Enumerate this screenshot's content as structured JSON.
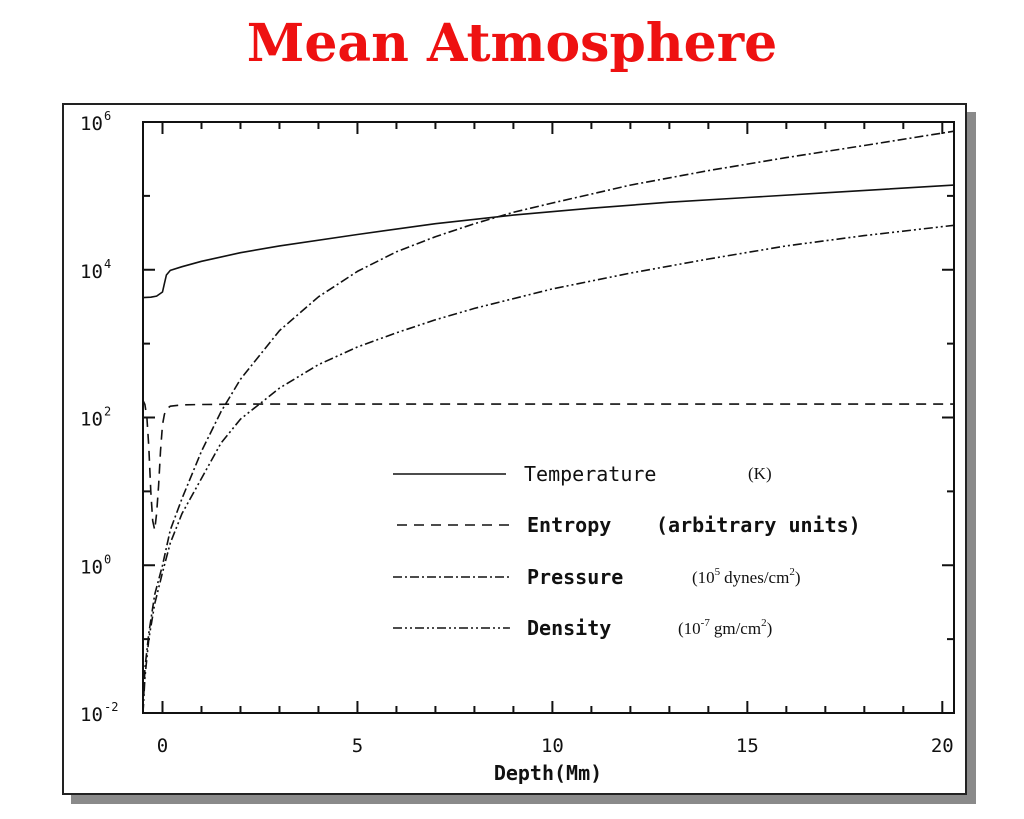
{
  "slide": {
    "title": "Mean Atmosphere"
  },
  "chart_data": {
    "type": "line",
    "title": "",
    "xlabel": "Depth(Mm)",
    "ylabel": "",
    "xlim": [
      -0.5,
      20.3
    ],
    "ylim": [
      0.01,
      1000000
    ],
    "y_scale": "log",
    "grid": false,
    "legend_placement": "lower-right",
    "x_ticks": [
      "0",
      "5",
      "10",
      "15",
      "20"
    ],
    "y_ticks": [
      {
        "base": "10",
        "exp": "-2",
        "value": 0.01
      },
      {
        "base": "10",
        "exp": "0",
        "value": 1
      },
      {
        "base": "10",
        "exp": "2",
        "value": 100
      },
      {
        "base": "10",
        "exp": "4",
        "value": 10000
      },
      {
        "base": "10",
        "exp": "6",
        "value": 1000000
      }
    ],
    "series": [
      {
        "name": "Temperature",
        "unit_text": "(K)",
        "style": "solid",
        "x": [
          -0.5,
          -0.3,
          -0.15,
          0.0,
          0.05,
          0.1,
          0.2,
          0.5,
          1,
          2,
          3,
          5,
          7,
          9,
          11,
          13,
          15,
          17,
          20.3
        ],
        "y": [
          4200,
          4250,
          4400,
          5000,
          6500,
          8500,
          9800,
          11000,
          13000,
          17000,
          21000,
          30000,
          42000,
          55000,
          68000,
          82000,
          95000,
          110000,
          140000
        ]
      },
      {
        "name": "Entropy",
        "unit_text": "(arbitrary units)",
        "style": "dashed",
        "x": [
          -0.5,
          -0.45,
          -0.4,
          -0.35,
          -0.3,
          -0.25,
          -0.2,
          -0.15,
          -0.1,
          -0.05,
          0.0,
          0.05,
          0.1,
          0.2,
          0.5,
          1,
          2,
          5,
          10,
          15,
          20.3
        ],
        "y": [
          170,
          150,
          100,
          40,
          10,
          4,
          3,
          5,
          12,
          35,
          80,
          110,
          130,
          142,
          148,
          150,
          152,
          152,
          152,
          152,
          152
        ]
      },
      {
        "name": "Pressure",
        "unit_text": "(10",
        "unit_exp": "5",
        "unit_rest": "dynes/cm",
        "unit_exp2": "2",
        "unit_close": ")",
        "style": "dash-dot",
        "x": [
          -0.5,
          -0.45,
          -0.35,
          -0.2,
          0.0,
          0.2,
          0.5,
          1,
          1.5,
          2,
          3,
          4,
          5,
          6,
          7,
          8,
          9,
          10,
          12,
          14,
          16,
          18,
          20.3
        ],
        "y": [
          0.01,
          0.04,
          0.12,
          0.4,
          1,
          3,
          8,
          35,
          120,
          330,
          1500,
          4300,
          9500,
          17500,
          28000,
          42000,
          60000,
          80000,
          140000,
          220000,
          330000,
          480000,
          750000
        ]
      },
      {
        "name": "Density",
        "unit_text": "(10",
        "unit_exp": "-7",
        "unit_rest": "gm/cm",
        "unit_exp2": "2",
        "unit_close": ")",
        "style": "dash-dot-dot",
        "x": [
          -0.5,
          -0.45,
          -0.35,
          -0.2,
          0.0,
          0.2,
          0.5,
          1,
          1.5,
          2,
          3,
          4,
          5,
          6,
          7,
          8,
          10,
          12,
          14,
          16,
          18,
          20.3
        ],
        "y": [
          0.01,
          0.03,
          0.1,
          0.3,
          0.8,
          2,
          5,
          15,
          45,
          95,
          250,
          520,
          900,
          1400,
          2100,
          3000,
          5500,
          9000,
          14000,
          21000,
          29000,
          40000
        ]
      }
    ]
  }
}
